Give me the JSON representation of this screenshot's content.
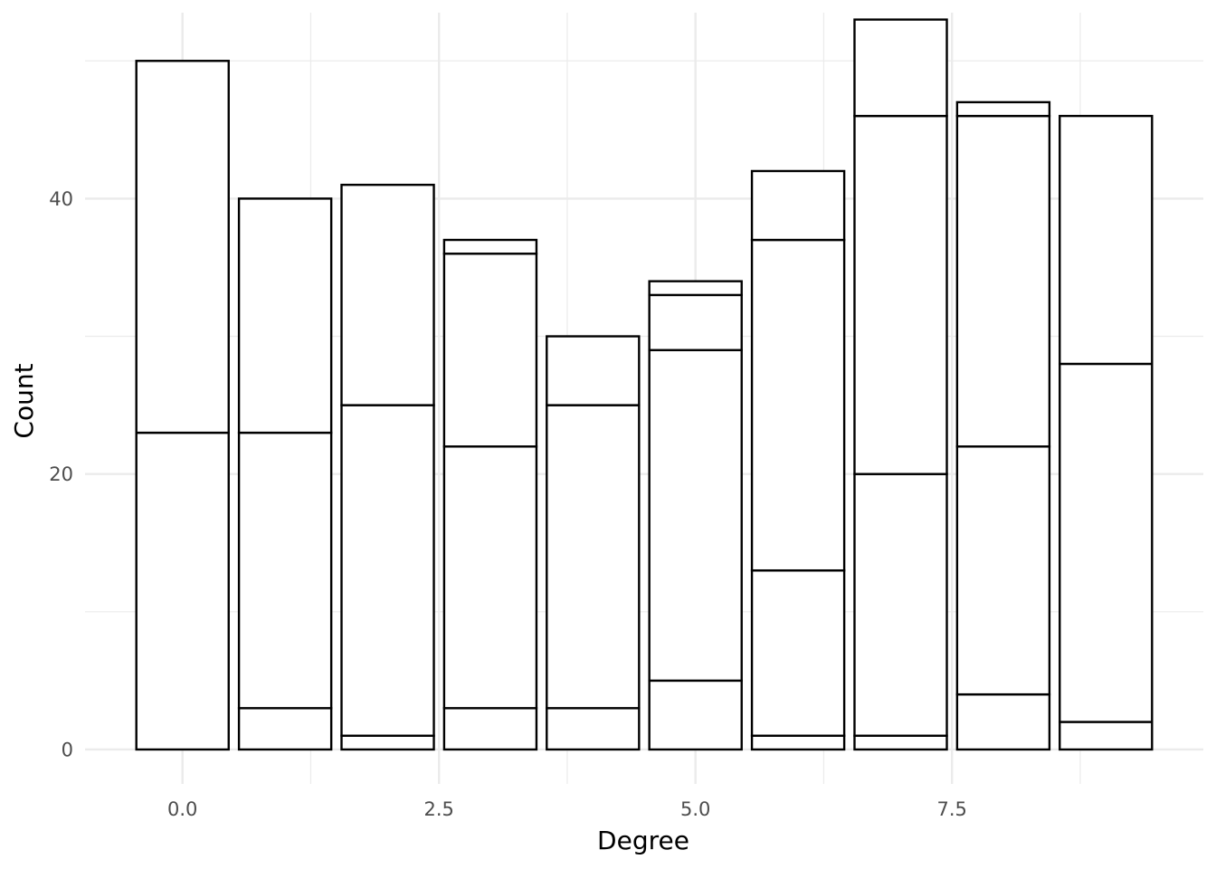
{
  "chart_data": {
    "type": "bar",
    "stacked": true,
    "xlabel": "Degree",
    "ylabel": "Count",
    "x": [
      0,
      1,
      2,
      3,
      4,
      5,
      6,
      7,
      8,
      9
    ],
    "segment_boundaries": [
      [
        23,
        50
      ],
      [
        3,
        23,
        40
      ],
      [
        1,
        25,
        41
      ],
      [
        3,
        22,
        36,
        37
      ],
      [
        3,
        25,
        30
      ],
      [
        5,
        29,
        33,
        34
      ],
      [
        1,
        13,
        37,
        42
      ],
      [
        1,
        20,
        46,
        53
      ],
      [
        4,
        22,
        46,
        47
      ],
      [
        2,
        28,
        46
      ]
    ],
    "totals": [
      50,
      40,
      41,
      37,
      30,
      34,
      42,
      53,
      47,
      46
    ],
    "xlim": [
      -0.95,
      9.95
    ],
    "ylim": [
      -2.5,
      53.5
    ],
    "x_ticks": [
      {
        "value": 0,
        "label": "0.0"
      },
      {
        "value": 2.5,
        "label": "2.5"
      },
      {
        "value": 5,
        "label": "5.0"
      },
      {
        "value": 7.5,
        "label": "7.5"
      }
    ],
    "x_minor_ticks": [
      1.25,
      3.75,
      6.25,
      8.75
    ],
    "y_ticks": [
      {
        "value": 0,
        "label": "0"
      },
      {
        "value": 20,
        "label": "20"
      },
      {
        "value": 40,
        "label": "40"
      }
    ],
    "y_minor_ticks": [
      10,
      30,
      50
    ],
    "grid": true,
    "bar_fill": "#ffffff",
    "bar_stroke": "#000000",
    "grid_color": "#ebebeb"
  }
}
